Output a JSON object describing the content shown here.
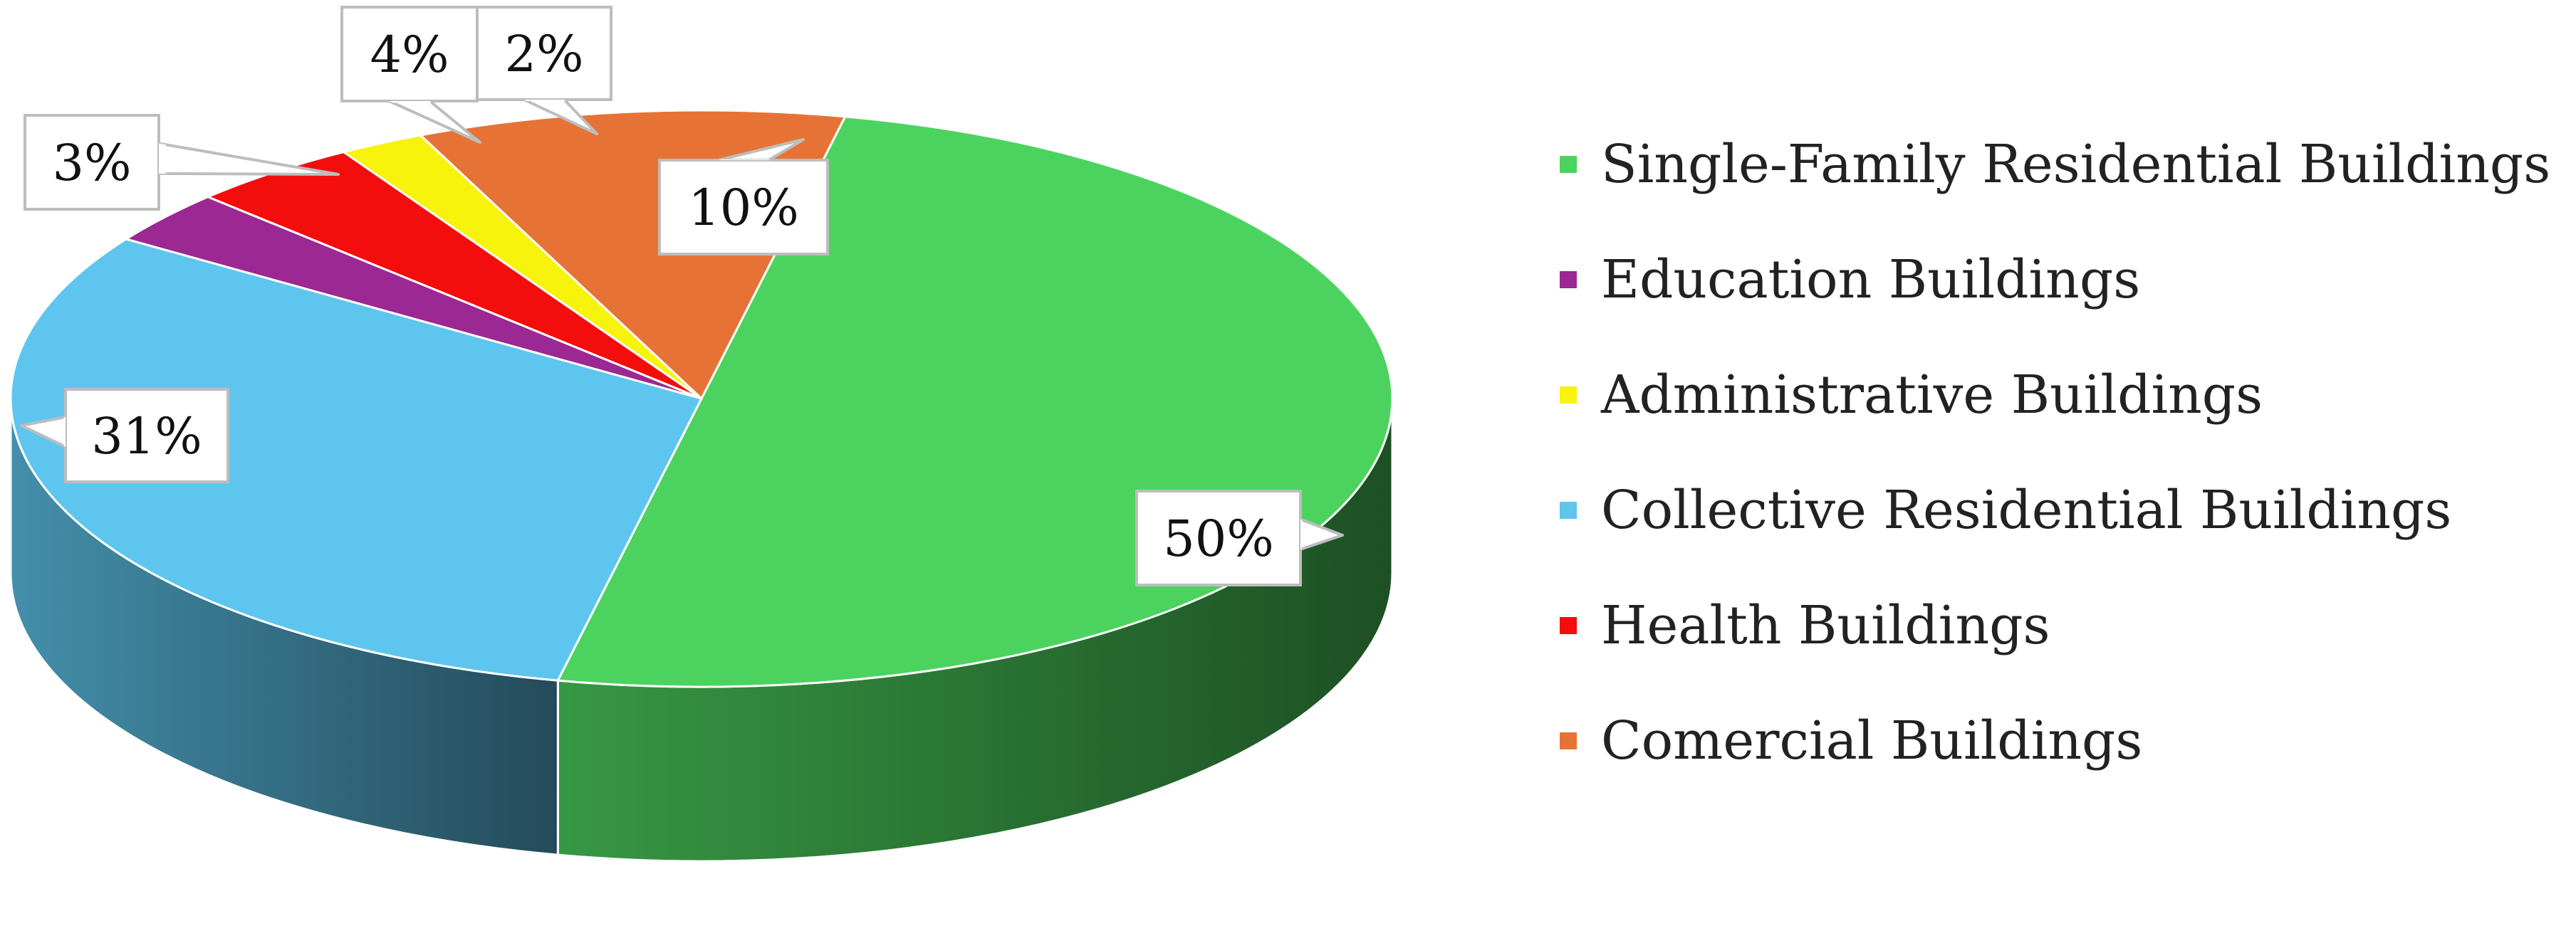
{
  "chart_data": {
    "type": "pie",
    "style": "3d",
    "title": "",
    "start_angle_deg": -78,
    "direction": "clockwise",
    "legend_position": "right",
    "slices": [
      {
        "label": "Single-Family Residential Buildings",
        "value": 50,
        "value_label": "50%",
        "color": "#4CD35F"
      },
      {
        "label": "Collective Residential Buildings",
        "value": 31,
        "value_label": "31%",
        "color": "#5EC6EE"
      },
      {
        "label": "Education Buildings",
        "value": 3,
        "value_label": "3%",
        "color": "#9B2893"
      },
      {
        "label": "Health Buildings",
        "value": 4,
        "value_label": "4%",
        "color": "#F40D0D"
      },
      {
        "label": "Administrative Buildings",
        "value": 2,
        "value_label": "2%",
        "color": "#F8F30B"
      },
      {
        "label": "Comercial Buildings",
        "value": 10,
        "value_label": "10%",
        "color": "#E67335"
      }
    ]
  },
  "legend": {
    "items": [
      {
        "label": "Single-Family Residential Buildings",
        "color": "#4CD35F"
      },
      {
        "label": "Education Buildings",
        "color": "#9B2893"
      },
      {
        "label": "Administrative Buildings",
        "color": "#F8F30B"
      },
      {
        "label": "Collective Residential Buildings",
        "color": "#5EC6EE"
      },
      {
        "label": "Health Buildings",
        "color": "#F40D0D"
      },
      {
        "label": "Comercial Buildings",
        "color": "#E67335"
      }
    ]
  }
}
